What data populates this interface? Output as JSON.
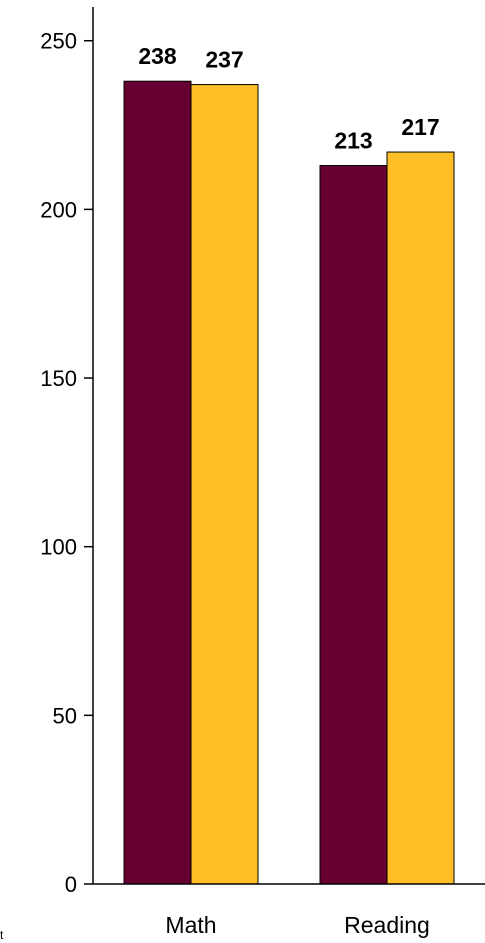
{
  "chart_data": {
    "type": "bar",
    "categories": [
      "Math",
      "Reading"
    ],
    "series": [
      {
        "values": [
          238,
          213
        ],
        "color": "#660033"
      },
      {
        "values": [
          237,
          217
        ],
        "color": "#FFBF26"
      }
    ],
    "ylim": [
      0,
      260
    ],
    "yticks": [
      0,
      50,
      100,
      150,
      200,
      250
    ],
    "title": "",
    "xlabel": "",
    "ylabel": "",
    "grid": false
  },
  "footnote": "t ",
  "colors": {
    "axis": "#000000",
    "bar_edge": "#000000"
  }
}
